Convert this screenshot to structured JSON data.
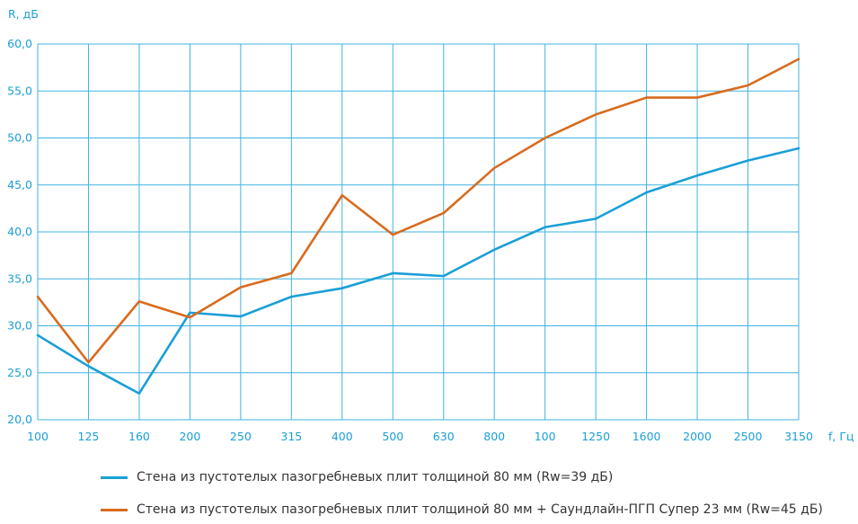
{
  "chart_data": {
    "type": "line",
    "xlabel": "f, Гц",
    "ylabel": "R, дБ",
    "categories": [
      "100",
      "125",
      "160",
      "200",
      "250",
      "315",
      "400",
      "500",
      "630",
      "800",
      "100",
      "1250",
      "1600",
      "2000",
      "2500",
      "3150"
    ],
    "ylim": [
      20,
      60
    ],
    "yticks": [
      "20,0",
      "25,0",
      "30,0",
      "35,0",
      "40,0",
      "45,0",
      "50,0",
      "55,0",
      "60,0"
    ],
    "grid": true,
    "legend_position": "bottom",
    "series": [
      {
        "name": "Стена из пустотелых пазогребневых плит толщиной  80 мм (Rw=39 дБ)",
        "color": "#1a9fd6",
        "values": [
          29.0,
          25.7,
          22.8,
          31.4,
          31.0,
          33.1,
          34.0,
          35.6,
          35.3,
          38.1,
          40.5,
          41.4,
          44.2,
          46.0,
          47.6,
          48.9
        ]
      },
      {
        "name": "Стена из пустотелых пазогребневых плит толщиной  80 мм + Саундлайн-ПГП Супер  23 мм (Rw=45 дБ)",
        "color": "#d86b1e",
        "values": [
          33.1,
          26.1,
          32.6,
          30.9,
          34.1,
          35.6,
          43.9,
          39.7,
          42.0,
          46.8,
          50.0,
          52.5,
          54.3,
          54.3,
          55.6,
          58.4
        ]
      }
    ]
  }
}
